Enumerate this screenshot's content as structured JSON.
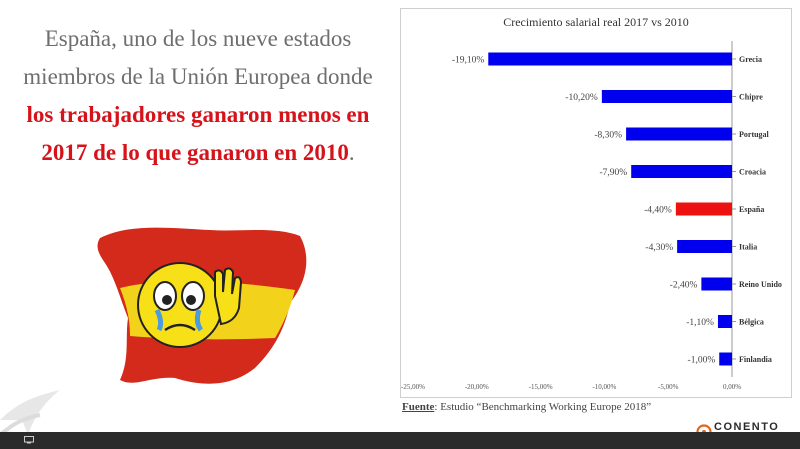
{
  "headline": {
    "part1": "España, uno de los nueve estados miembros de la Unión Europea donde ",
    "highlight": "los trabajadores ganaron menos en 2017 de lo que ganaron en 2010",
    "part2": "."
  },
  "source": {
    "label": "Fuente",
    "text": ": Estudio “Benchmarking Working Europe 2018”"
  },
  "brand": {
    "name": "CONENTO"
  },
  "icons": {
    "map": "spain-map-crying-emoji",
    "corner": "arrow-deco-icon",
    "monitor": "monitor-icon",
    "brand": "conento-logo-icon"
  },
  "colors": {
    "bar": "#0000ee",
    "highlight_bar": "#ee1111",
    "highlight_text": "#d6121a"
  },
  "chart_data": {
    "type": "bar",
    "orientation": "horizontal",
    "title": "Crecimiento salarial real 2017 vs 2010",
    "categories": [
      "Grecia",
      "Chipre",
      "Portugal",
      "Croacia",
      "España",
      "Italia",
      "Reino Unido",
      "Bélgica",
      "Finlandia"
    ],
    "values": [
      -19.1,
      -10.2,
      -8.3,
      -7.9,
      -4.4,
      -4.3,
      -2.4,
      -1.1,
      -1.0
    ],
    "value_labels": [
      "-19,10%",
      "-10,20%",
      "-8,30%",
      "-7,90%",
      "-4,40%",
      "-4,30%",
      "-2,40%",
      "-1,10%",
      "-1,00%"
    ],
    "highlight": "España",
    "xlim": [
      -25,
      0
    ],
    "xticks": [
      -25,
      -20,
      -15,
      -10,
      -5,
      0
    ],
    "xtick_labels": [
      "-25,00%",
      "-20,00%",
      "-15,00%",
      "-10,00%",
      "-5,00%",
      "0,00%"
    ],
    "grid": false
  }
}
